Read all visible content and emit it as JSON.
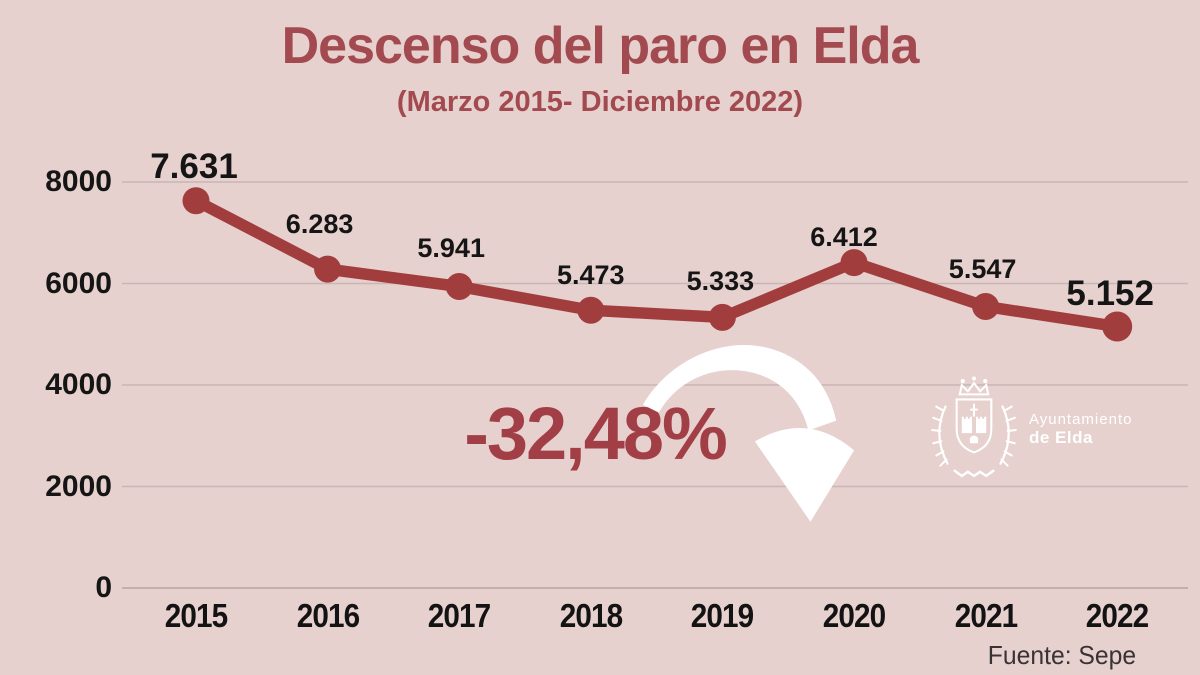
{
  "page": {
    "title": "Descenso del paro en Elda",
    "subtitle": "(Marzo 2015- Diciembre 2022)",
    "highlight_pct": "-32,48%",
    "source": "Fuente: Sepe"
  },
  "logo": {
    "line1": "Ayuntamiento",
    "line2": "de Elda"
  },
  "colors": {
    "background": "#e6d1ce",
    "line": "#a23d3d",
    "title": "#a24a50",
    "highlight": "#a23f46",
    "point_label": "#151515",
    "gridline": "#c8b6b4",
    "baseline": "#b7a5a3",
    "source_text": "#3a3336",
    "logo": "#ffffff"
  },
  "chart_data": {
    "type": "line",
    "title": "Descenso del paro en Elda",
    "subtitle": "(Marzo 2015- Diciembre 2022)",
    "categories": [
      "2015",
      "2016",
      "2017",
      "2018",
      "2019",
      "2020",
      "2021",
      "2022"
    ],
    "values": [
      7631,
      6283,
      5941,
      5473,
      5333,
      6412,
      5547,
      5152
    ],
    "point_labels": [
      "7.631",
      "6.283",
      "5.941",
      "5.473",
      "5.333",
      "6.412",
      "5.547",
      "5.152"
    ],
    "emphasized_points": [
      0,
      7
    ],
    "y_ticks": [
      0,
      2000,
      4000,
      6000,
      8000
    ],
    "ylim": [
      0,
      8000
    ],
    "grid": true,
    "legend": "none",
    "xlabel": "",
    "ylabel": "",
    "annotation": "-32,48%",
    "source": "Fuente: Sepe"
  }
}
